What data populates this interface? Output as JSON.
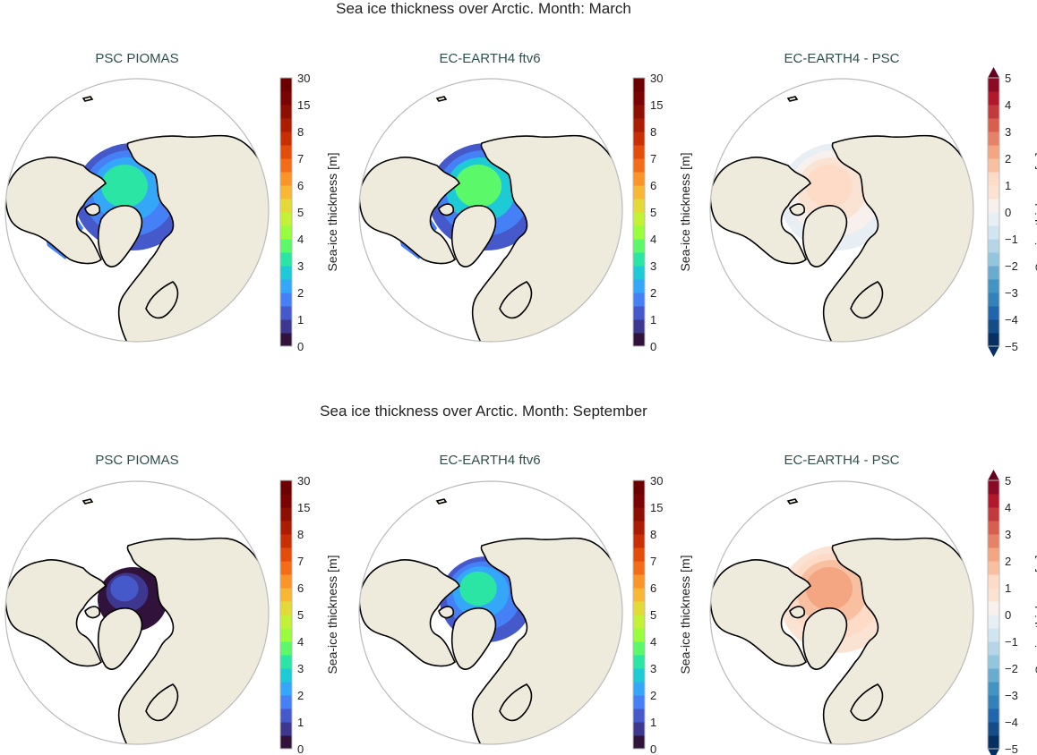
{
  "chart_data": [
    {
      "type": "heatmap",
      "title": "Sea ice thickness over Arctic. Month: March",
      "panels": [
        {
          "title": "PSC PIOMAS",
          "colorbar": "sequential",
          "ice_extent": "large",
          "typical_thickness_m": [
            1,
            3
          ]
        },
        {
          "title": "EC-EARTH4 ftv6",
          "colorbar": "sequential",
          "ice_extent": "large",
          "typical_thickness_m": [
            1,
            3.5
          ]
        },
        {
          "title": "EC-EARTH4 -  PSC",
          "colorbar": "diverging",
          "typical_difference_m": [
            -0.5,
            1
          ]
        }
      ]
    },
    {
      "type": "heatmap",
      "title": "Sea ice thickness over Arctic. Month: September",
      "panels": [
        {
          "title": "PSC PIOMAS",
          "colorbar": "sequential",
          "ice_extent": "small",
          "typical_thickness_m": [
            0,
            1
          ]
        },
        {
          "title": "EC-EARTH4 ftv6",
          "colorbar": "sequential",
          "ice_extent": "medium",
          "typical_thickness_m": [
            1,
            3
          ]
        },
        {
          "title": "EC-EARTH4 -  PSC",
          "colorbar": "diverging",
          "typical_difference_m": [
            0.5,
            2
          ]
        }
      ]
    }
  ],
  "colorbars": {
    "sequential": {
      "label": "Sea-ice thickness [m]",
      "ticks": [
        "0",
        "1",
        "2",
        "3",
        "4",
        "5",
        "6",
        "7",
        "8",
        "15",
        "30"
      ],
      "colors": [
        "#30123b",
        "#3e378f",
        "#4559cb",
        "#4680f6",
        "#35a7f9",
        "#1ccbd5",
        "#2ae5a3",
        "#5bf86a",
        "#98fd3d",
        "#c3f135",
        "#e3d937",
        "#f8b835",
        "#fc9528",
        "#f36c17",
        "#e34c0b",
        "#c92f04",
        "#ab1d02",
        "#8c0f01",
        "#7a0403",
        "#6a0000"
      ],
      "extend": "none"
    },
    "diverging": {
      "label": "Sea-ice thickness [m]",
      "ticks": [
        "5",
        "4",
        "3",
        "2",
        "1",
        "0",
        "−1",
        "−2",
        "−3",
        "−4",
        "−5"
      ],
      "colors": [
        "#053061",
        "#134c87",
        "#2166ac",
        "#3480b9",
        "#4393c3",
        "#6aacd0",
        "#92c5de",
        "#b4d6e7",
        "#d1e5f0",
        "#e7eff4",
        "#f7f0ec",
        "#fbe3d4",
        "#fddbc7",
        "#f9bfa1",
        "#f4a582",
        "#e58268",
        "#d6604d",
        "#c13b3d",
        "#b2182b",
        "#8a0b25"
      ],
      "extend_below": "#053061",
      "extend_above": "#67001f"
    }
  },
  "colors": {
    "land": "#efebdc",
    "coast": "#000000",
    "frame": "#bbbbbb",
    "subtitle": "#2f4f4f"
  }
}
